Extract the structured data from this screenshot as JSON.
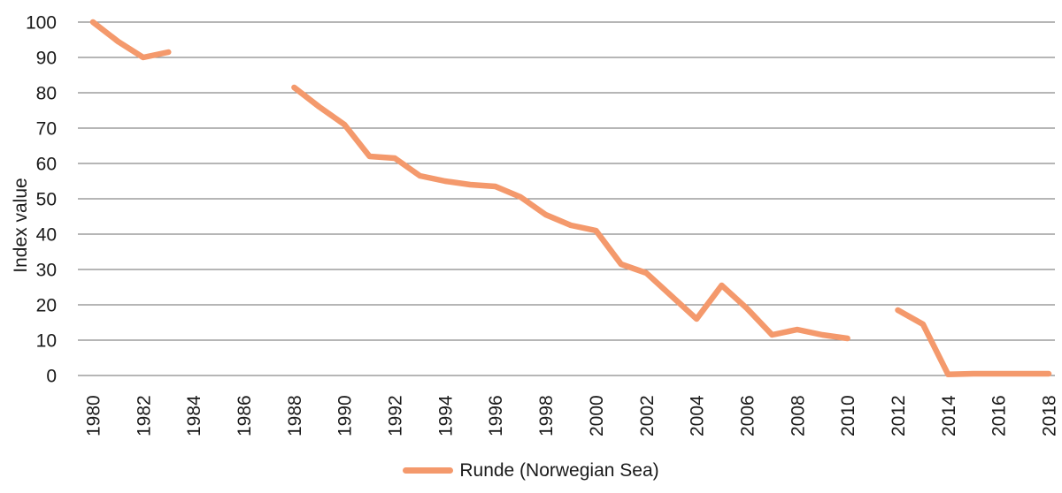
{
  "chart_data": {
    "type": "line",
    "title": "",
    "xlabel": "",
    "ylabel": "Index value",
    "ylim": [
      0,
      100
    ],
    "xlim": [
      1980,
      2018
    ],
    "yticks": [
      0,
      10,
      20,
      30,
      40,
      50,
      60,
      70,
      80,
      90,
      100
    ],
    "xticks": [
      1980,
      1982,
      1984,
      1986,
      1988,
      1990,
      1992,
      1994,
      1996,
      1998,
      2000,
      2002,
      2004,
      2006,
      2008,
      2010,
      2012,
      2014,
      2016,
      2018
    ],
    "grid": "horizontal",
    "legend_position": "bottom-center",
    "x": [
      1980,
      1981,
      1982,
      1983,
      1984,
      1985,
      1986,
      1987,
      1988,
      1989,
      1990,
      1991,
      1992,
      1993,
      1994,
      1995,
      1996,
      1997,
      1998,
      1999,
      2000,
      2001,
      2002,
      2003,
      2004,
      2005,
      2006,
      2007,
      2008,
      2009,
      2010,
      2011,
      2012,
      2013,
      2014,
      2015,
      2016,
      2017,
      2018
    ],
    "series": [
      {
        "name": "Runde (Norwegian Sea)",
        "color": "#F4996C",
        "line_width": 6.5,
        "values": [
          100,
          94.5,
          90,
          91.5,
          null,
          null,
          null,
          null,
          81.5,
          76,
          71,
          62,
          61.5,
          56.5,
          55,
          54,
          53.5,
          50.5,
          45.5,
          42.5,
          41,
          31.5,
          29,
          22.5,
          16,
          25.5,
          19,
          11.5,
          13,
          11.5,
          10.5,
          null,
          18.5,
          14.5,
          0.3,
          0.5,
          0.5,
          0.5,
          0.5
        ]
      }
    ],
    "colors": {
      "gridline": "#8A8A8A",
      "text": "#1A1A1A",
      "background": "#FFFFFF"
    }
  }
}
